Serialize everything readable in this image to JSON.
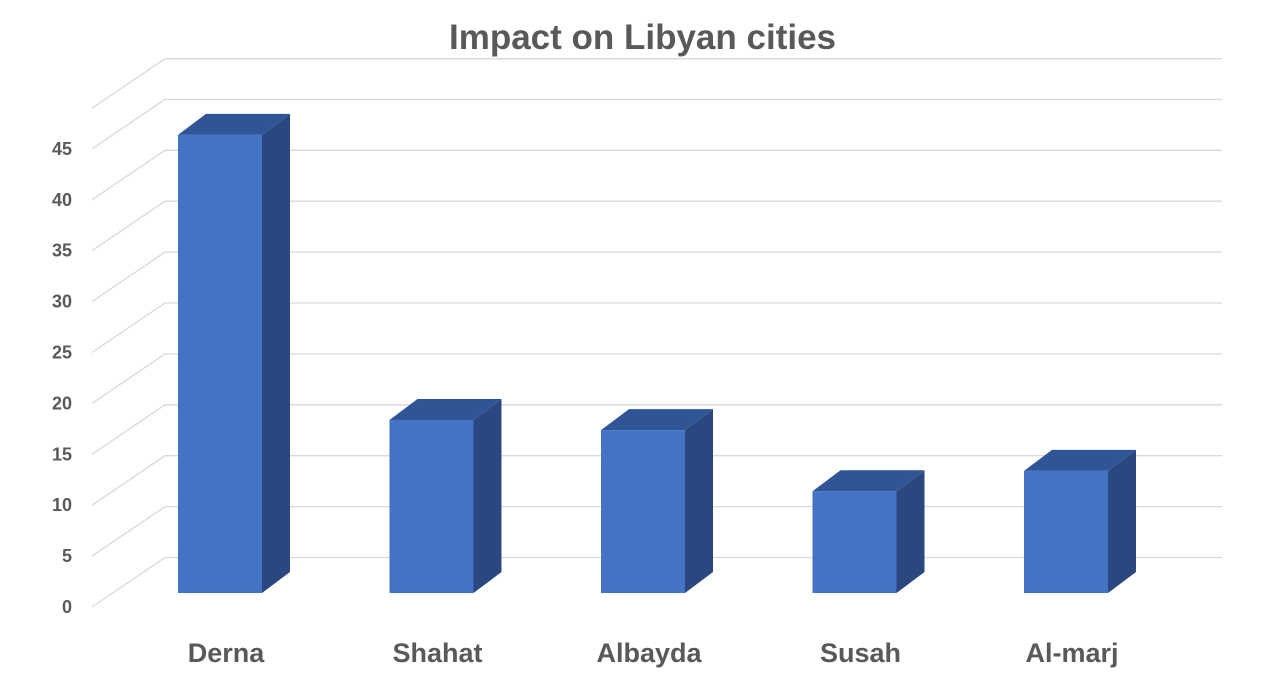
{
  "chart_data": {
    "type": "bar",
    "title": "Impact on Libyan cities",
    "xlabel": "",
    "ylabel": "",
    "categories": [
      "Derna",
      "Shahat",
      "Albayda",
      "Susah",
      "Al-marj"
    ],
    "values": [
      45,
      17,
      16,
      10,
      12
    ],
    "ylim": [
      0,
      49
    ],
    "yticks": [
      0,
      5,
      10,
      15,
      20,
      25,
      30,
      35,
      40,
      45
    ],
    "grid": true,
    "legend": "none",
    "style": "3d-column"
  },
  "colors": {
    "bar_front": "#4472C4",
    "bar_top": "#2F5597",
    "bar_side": "#2A4780",
    "grid": "#D9D9D9",
    "text": "#595959"
  }
}
